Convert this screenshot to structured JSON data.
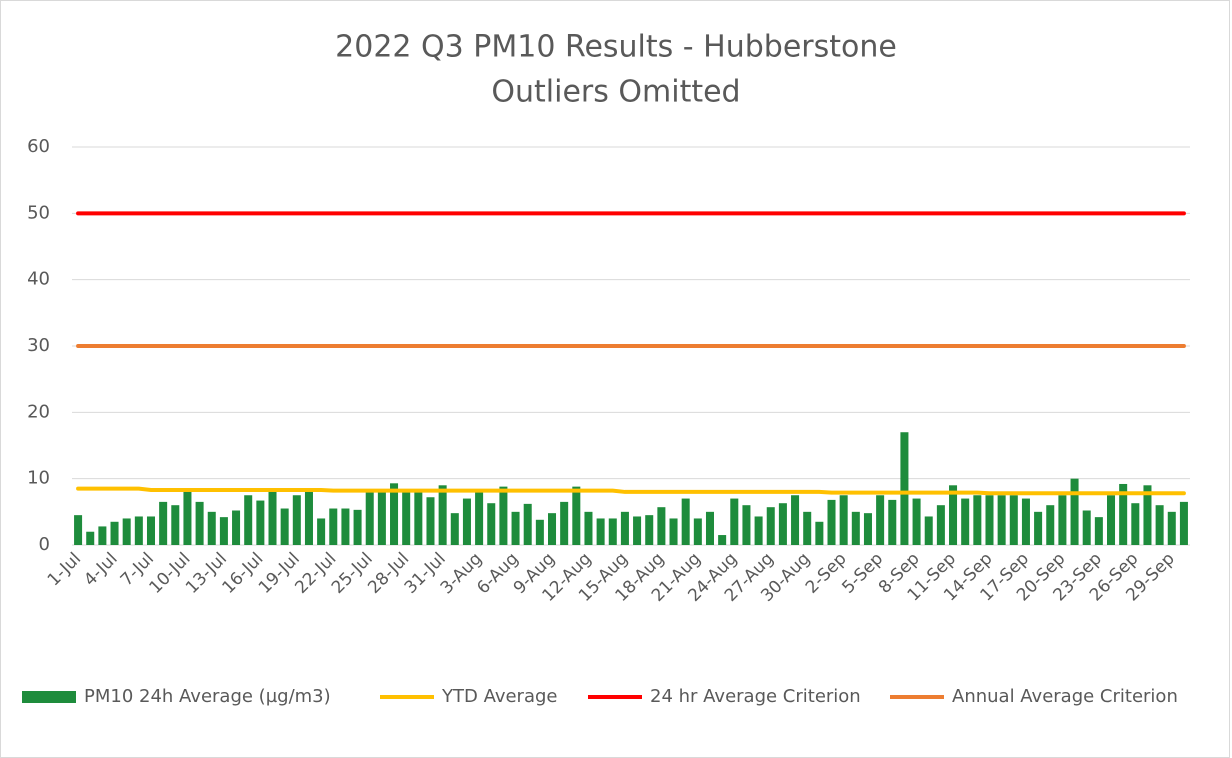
{
  "chart_data": {
    "type": "bar",
    "title": "2022 Q3 PM10 Results - Hubberstone",
    "subtitle": "Outliers Omitted",
    "categories": [
      "1-Jul",
      null,
      null,
      "4-Jul",
      null,
      null,
      "7-Jul",
      null,
      null,
      "10-Jul",
      null,
      null,
      "13-Jul",
      null,
      null,
      "16-Jul",
      null,
      null,
      "19-Jul",
      null,
      null,
      "22-Jul",
      null,
      null,
      "25-Jul",
      null,
      null,
      "28-Jul",
      null,
      null,
      "31-Jul",
      null,
      null,
      "3-Aug",
      null,
      null,
      "6-Aug",
      null,
      null,
      "9-Aug",
      null,
      null,
      "12-Aug",
      null,
      null,
      "15-Aug",
      null,
      null,
      "18-Aug",
      null,
      null,
      "21-Aug",
      null,
      null,
      "24-Aug",
      null,
      null,
      "27-Aug",
      null,
      null,
      "30-Aug",
      null,
      null,
      "2-Sep",
      null,
      null,
      "5-Sep",
      null,
      null,
      "8-Sep",
      null,
      null,
      "11-Sep",
      null,
      null,
      "14-Sep",
      null,
      null,
      "17-Sep",
      null,
      null,
      "20-Sep",
      null,
      null,
      "23-Sep",
      null,
      null,
      "26-Sep",
      null,
      null,
      "29-Sep",
      null
    ],
    "series": [
      {
        "name": "PM10 24h Average (µg/m3)",
        "type": "bar",
        "color": "#1e8c3c",
        "values": [
          4.5,
          2.0,
          2.8,
          3.5,
          4.0,
          4.3,
          4.3,
          6.5,
          6.0,
          8.0,
          6.5,
          5.0,
          4.2,
          5.2,
          7.5,
          6.7,
          8.0,
          5.5,
          7.5,
          8.0,
          4.0,
          5.5,
          5.5,
          5.3,
          8.0,
          8.0,
          9.3,
          8.0,
          8.0,
          7.2,
          9.0,
          4.8,
          7.0,
          8.0,
          6.3,
          8.8,
          5.0,
          6.2,
          3.8,
          4.8,
          6.5,
          8.8,
          5.0,
          4.0,
          4.0,
          5.0,
          4.3,
          4.5,
          5.7,
          4.0,
          7.0,
          4.0,
          5.0,
          1.5,
          7.0,
          6.0,
          4.3,
          5.7,
          6.3,
          7.5,
          5.0,
          3.5,
          6.8,
          7.5,
          5.0,
          4.8,
          7.5,
          6.8,
          17.0,
          7.0,
          4.3,
          6.0,
          9.0,
          7.0,
          7.5,
          7.5,
          7.5,
          7.5,
          7.0,
          5.0,
          6.0,
          7.5,
          10.0,
          5.2,
          4.2,
          7.5,
          9.2,
          6.3,
          9.0,
          6.0,
          5.0,
          6.5
        ]
      },
      {
        "name": "YTD Average",
        "type": "line",
        "color": "#ffc000",
        "values": [
          8.5,
          8.5,
          8.5,
          8.5,
          8.5,
          8.5,
          8.3,
          8.3,
          8.3,
          8.3,
          8.3,
          8.3,
          8.3,
          8.3,
          8.3,
          8.3,
          8.3,
          8.3,
          8.3,
          8.3,
          8.3,
          8.2,
          8.2,
          8.2,
          8.2,
          8.2,
          8.2,
          8.2,
          8.2,
          8.2,
          8.2,
          8.2,
          8.2,
          8.2,
          8.2,
          8.2,
          8.2,
          8.2,
          8.2,
          8.2,
          8.2,
          8.2,
          8.2,
          8.2,
          8.2,
          8.0,
          8.0,
          8.0,
          8.0,
          8.0,
          8.0,
          8.0,
          8.0,
          8.0,
          8.0,
          8.0,
          8.0,
          8.0,
          8.0,
          8.0,
          8.0,
          8.0,
          7.9,
          7.9,
          7.9,
          7.9,
          7.9,
          7.9,
          7.9,
          7.9,
          7.9,
          7.9,
          7.9,
          7.9,
          7.9,
          7.8,
          7.8,
          7.8,
          7.8,
          7.8,
          7.8,
          7.8,
          7.8,
          7.8,
          7.8,
          7.8,
          7.8,
          7.8,
          7.8,
          7.8,
          7.8,
          7.8
        ]
      },
      {
        "name": "24 hr Average Criterion",
        "type": "line",
        "color": "#ff0000",
        "values": [
          50,
          50,
          50,
          50,
          50,
          50,
          50,
          50,
          50,
          50,
          50,
          50,
          50,
          50,
          50,
          50,
          50,
          50,
          50,
          50,
          50,
          50,
          50,
          50,
          50,
          50,
          50,
          50,
          50,
          50,
          50,
          50,
          50,
          50,
          50,
          50,
          50,
          50,
          50,
          50,
          50,
          50,
          50,
          50,
          50,
          50,
          50,
          50,
          50,
          50,
          50,
          50,
          50,
          50,
          50,
          50,
          50,
          50,
          50,
          50,
          50,
          50,
          50,
          50,
          50,
          50,
          50,
          50,
          50,
          50,
          50,
          50,
          50,
          50,
          50,
          50,
          50,
          50,
          50,
          50,
          50,
          50,
          50,
          50,
          50,
          50,
          50,
          50,
          50,
          50,
          50,
          50
        ]
      },
      {
        "name": "Annual Average Criterion",
        "type": "line",
        "color": "#ed7d31",
        "values": [
          30,
          30,
          30,
          30,
          30,
          30,
          30,
          30,
          30,
          30,
          30,
          30,
          30,
          30,
          30,
          30,
          30,
          30,
          30,
          30,
          30,
          30,
          30,
          30,
          30,
          30,
          30,
          30,
          30,
          30,
          30,
          30,
          30,
          30,
          30,
          30,
          30,
          30,
          30,
          30,
          30,
          30,
          30,
          30,
          30,
          30,
          30,
          30,
          30,
          30,
          30,
          30,
          30,
          30,
          30,
          30,
          30,
          30,
          30,
          30,
          30,
          30,
          30,
          30,
          30,
          30,
          30,
          30,
          30,
          30,
          30,
          30,
          30,
          30,
          30,
          30,
          30,
          30,
          30,
          30,
          30,
          30,
          30,
          30,
          30,
          30,
          30,
          30,
          30,
          30,
          30,
          30
        ]
      }
    ],
    "ylim": [
      0,
      60
    ],
    "yticks": [
      0,
      10,
      20,
      30,
      40,
      50,
      60
    ],
    "grid": true,
    "legend": "bottom"
  }
}
